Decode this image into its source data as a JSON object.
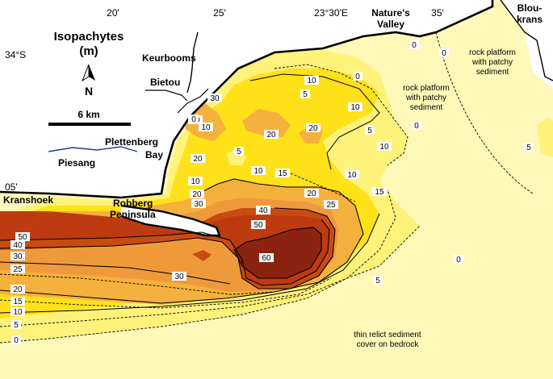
{
  "legend": {
    "title_line1": "Isopachytes",
    "title_line2": "(m)",
    "north_label": "N",
    "scale_label": "6 km"
  },
  "axes": {
    "lon_ticks": [
      "20'",
      "25'",
      "23°30'E",
      "35'"
    ],
    "lat_ticks": [
      "34°S",
      "05'"
    ]
  },
  "places": {
    "keurbooms": "Keurbooms",
    "bietou": "Bietou",
    "plettenberg_line1": "Plettenberg",
    "plettenberg_line2": "Bay",
    "piesang": "Piesang",
    "kranshoek": "Kranshoek",
    "robberg_line1": "Robberg",
    "robberg_line2": "Peninsula",
    "natures_line1": "Nature's",
    "natures_line2": "Valley",
    "bloukrans_line1": "Blou-",
    "bloukrans_line2": "krans"
  },
  "notes": {
    "rock1_line1": "rock platform",
    "rock1_line2": "with patchy",
    "rock1_line3": "sediment",
    "rock2_line1": "rock platform",
    "rock2_line2": "with patchy",
    "rock2_line3": "sediment",
    "relict_line1": "thin relict sediment",
    "relict_line2": "cover on bedrock"
  },
  "contour_labels": {
    "west_50": "50",
    "west_40": "40",
    "west_30": "30",
    "west_25": "25",
    "west_20": "20",
    "west_15": "15",
    "west_10": "10",
    "west_5": "5",
    "west_0": "0",
    "c60": "60",
    "c50": "50",
    "c40": "40",
    "c30_south": "30",
    "c25": "25",
    "c20_east": "20",
    "c20_a": "20",
    "c20_b": "20",
    "c20_c": "20",
    "c20_d": "20",
    "c30_bay": "30",
    "c30_coast": "30",
    "c15_a": "15",
    "c15_b": "15",
    "c10_a": "10",
    "c10_b": "10",
    "c10_c": "10",
    "c10_d": "10",
    "c10_e": "10",
    "c10_f": "10",
    "c10_g": "10",
    "c10_h": "10",
    "c5_a": "5",
    "c5_b": "5",
    "c5_c": "5",
    "c5_d": "5",
    "c5_e": "5",
    "c0_a": "0",
    "c0_b": "0",
    "c0_c": "0",
    "c0_d": "0",
    "c0_e": "0",
    "c0_f": "0"
  },
  "colors": {
    "band_0_5": "#fff8b8",
    "band_5_10": "#fff27a",
    "band_10_20": "#ffe11a",
    "band_20_30": "#f5b13d",
    "band_30_40": "#ef9a3a",
    "band_40_50": "#c84c12",
    "band_50_60": "#be3a10",
    "band_60": "#8a2410",
    "land": "#ffffff",
    "river_blue": "#1f3f8a"
  }
}
